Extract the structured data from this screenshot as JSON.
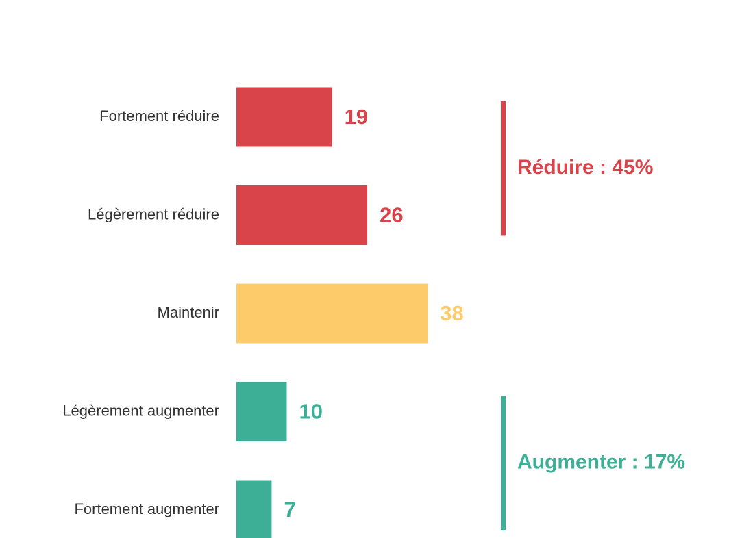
{
  "chart_data": {
    "type": "bar",
    "orientation": "horizontal",
    "categories": [
      "Fortement réduire",
      "Légèrement réduire",
      "Maintenir",
      "Légèrement augmenter",
      "Fortement augmenter"
    ],
    "values": [
      19,
      26,
      38,
      10,
      7
    ],
    "colors": [
      "#d9444b",
      "#d9444b",
      "#fecb6b",
      "#3daf96",
      "#3daf96"
    ],
    "groups": [
      {
        "label": "Réduire : 45%",
        "color": "#d9444b"
      },
      {
        "label": "Augmenter : 17%",
        "color": "#3daf96"
      }
    ]
  }
}
